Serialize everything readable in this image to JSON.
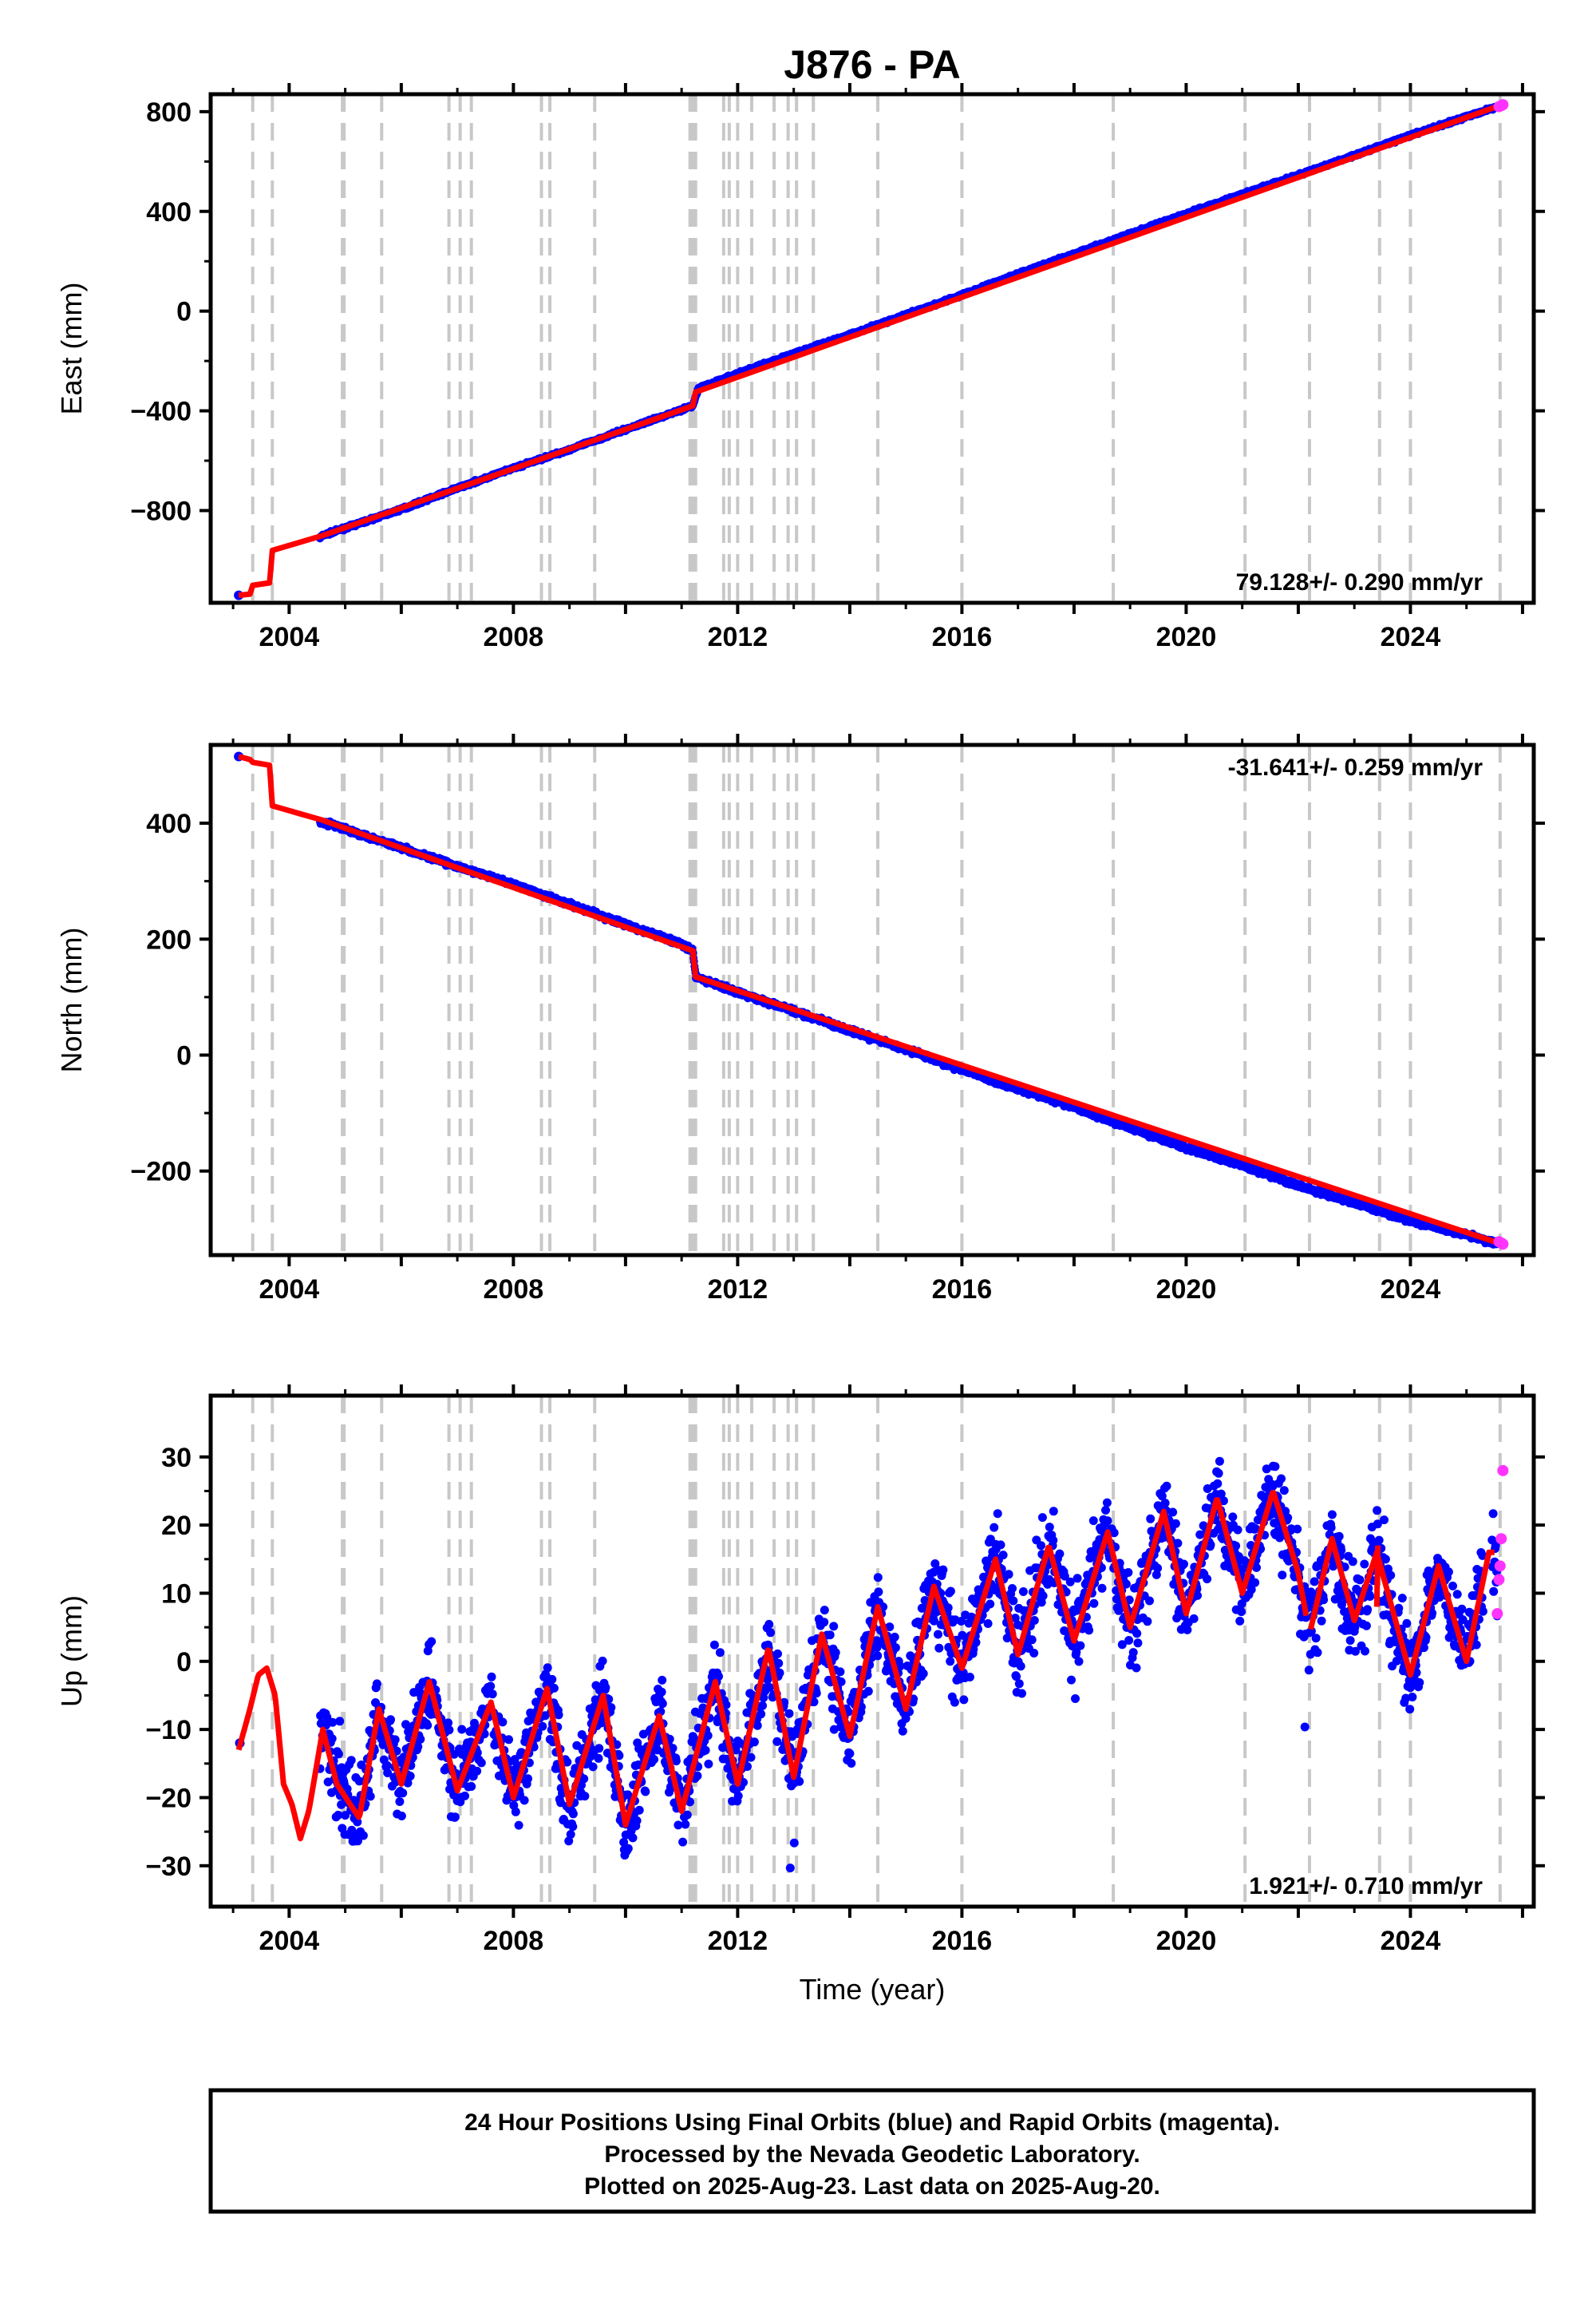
{
  "title": "J876 - PA",
  "footer": {
    "line1": "24 Hour Positions Using Final Orbits (blue) and Rapid Orbits (magenta).",
    "line2": "Processed by the Nevada Geodetic Laboratory.",
    "line3": "Plotted on 2025-Aug-23. Last data on 2025-Aug-20."
  },
  "colors": {
    "final": "#0000ff",
    "rapid": "#ff33ff",
    "model": "#ff0000",
    "events": "#c8c8c8"
  },
  "chart_data": [
    {
      "type": "scatter",
      "ylabel": "East (mm)",
      "xlabel": "",
      "rate_label": "79.128+/- 0.290 mm/yr",
      "xlim": [
        2002.6,
        2026.2
      ],
      "ylim": [
        -1170,
        870
      ],
      "yticks": [
        -800,
        -400,
        0,
        400,
        800
      ],
      "xticks": [
        2004,
        2008,
        2012,
        2016,
        2020,
        2024
      ],
      "series": [
        {
          "role": "final-orbits",
          "x": [
            2003.1,
            2003.3,
            2004.6,
            2005.0,
            2006.0,
            2007.0,
            2008.0,
            2009.0,
            2010.0,
            2011.0,
            2011.2,
            2011.3,
            2012.0,
            2013.0,
            2014.0,
            2015.0,
            2016.0,
            2017.0,
            2018.0,
            2019.0,
            2020.0,
            2021.0,
            2022.0,
            2023.0,
            2024.0,
            2025.0,
            2025.55
          ],
          "y": [
            -1140,
            -1135,
            -900,
            -870,
            -795,
            -710,
            -630,
            -555,
            -475,
            -395,
            -380,
            -310,
            -250,
            -170,
            -95,
            -15,
            65,
            150,
            230,
            310,
            390,
            470,
            545,
            625,
            705,
            780,
            820
          ]
        },
        {
          "role": "model",
          "x": [
            2003.1,
            2003.3,
            2003.35,
            2003.65,
            2003.7,
            2004.6,
            2011.2,
            2011.25,
            2025.6
          ],
          "y": [
            -1140,
            -1135,
            -1100,
            -1090,
            -960,
            -900,
            -380,
            -325,
            825
          ]
        },
        {
          "role": "rapid-orbits",
          "x": [
            2025.58,
            2025.62,
            2025.65
          ],
          "y": [
            820,
            824,
            828
          ]
        }
      ]
    },
    {
      "type": "scatter",
      "ylabel": "North (mm)",
      "xlabel": "",
      "rate_label": "-31.641+/- 0.259 mm/yr",
      "xlim": [
        2002.6,
        2026.2
      ],
      "ylim": [
        -345,
        535
      ],
      "yticks": [
        -200,
        0,
        200,
        400
      ],
      "xticks": [
        2004,
        2008,
        2012,
        2016,
        2020,
        2024
      ],
      "series": [
        {
          "role": "final-orbits",
          "x": [
            2003.1,
            2004.5,
            2005.0,
            2006.0,
            2007.0,
            2008.0,
            2009.0,
            2010.0,
            2011.0,
            2011.2,
            2011.25,
            2012.0,
            2013.0,
            2014.0,
            2015.0,
            2016.0,
            2017.0,
            2018.0,
            2019.0,
            2020.0,
            2021.0,
            2022.0,
            2023.0,
            2024.0,
            2025.0,
            2025.55
          ],
          "y": [
            515,
            405,
            390,
            358,
            325,
            295,
            260,
            225,
            192,
            180,
            135,
            108,
            76,
            42,
            10,
            -25,
            -58,
            -90,
            -125,
            -160,
            -190,
            -225,
            -255,
            -285,
            -310,
            -325
          ]
        },
        {
          "role": "model",
          "x": [
            2003.1,
            2003.3,
            2003.35,
            2003.65,
            2003.7,
            2004.6,
            2011.2,
            2011.25,
            2025.6
          ],
          "y": [
            515,
            510,
            505,
            500,
            430,
            405,
            180,
            135,
            -325
          ]
        },
        {
          "role": "rapid-orbits",
          "x": [
            2025.58,
            2025.62,
            2025.65
          ],
          "y": [
            -322,
            -324,
            -326
          ]
        }
      ]
    },
    {
      "type": "scatter",
      "ylabel": "Up (mm)",
      "xlabel": "Time (year)",
      "rate_label": "1.921+/- 0.710 mm/yr",
      "xlim": [
        2002.6,
        2026.2
      ],
      "ylim": [
        -36,
        39
      ],
      "yticks": [
        -30,
        -20,
        -10,
        0,
        10,
        20,
        30
      ],
      "xticks": [
        2004,
        2008,
        2012,
        2016,
        2020,
        2024
      ],
      "series": [
        {
          "role": "model",
          "x": [
            2003.1,
            2003.3,
            2003.45,
            2003.6,
            2003.75,
            2003.9,
            2004.05,
            2004.2,
            2004.35,
            2004.6,
            2004.85,
            2005.25,
            2005.6,
            2006.0,
            2006.5,
            2007.0,
            2007.6,
            2008.0,
            2008.6,
            2009.0,
            2009.6,
            2010.0,
            2010.6,
            2011.0,
            2011.6,
            2012.0,
            2012.55,
            2013.0,
            2013.5,
            2014.0,
            2014.5,
            2015.0,
            2015.5,
            2016.0,
            2016.6,
            2017.0,
            2017.55,
            2018.0,
            2018.6,
            2019.0,
            2019.6,
            2020.0,
            2020.55,
            2021.0,
            2021.55,
            2022.0,
            2022.2,
            2022.6,
            2023.0,
            2023.4,
            2023.8,
            2024.0,
            2024.5,
            2025.0,
            2025.4
          ],
          "y": [
            -13,
            -7,
            -2,
            -1,
            -5,
            -18,
            -21,
            -26,
            -22,
            -10,
            -18,
            -23,
            -7,
            -18,
            -3,
            -19,
            -6,
            -20,
            -4,
            -21,
            -5,
            -24,
            -8,
            -22,
            -3,
            -18,
            2,
            -17,
            4,
            -11,
            8,
            -7,
            11,
            -1,
            15,
            1,
            17,
            3,
            19,
            5,
            22,
            7,
            24,
            10,
            25,
            13,
            4,
            18,
            6,
            16,
            4,
            -2,
            14,
            0,
            16
          ]
        },
        {
          "role": "rapid-orbits",
          "x": [
            2025.55,
            2025.58,
            2025.6,
            2025.62,
            2025.65
          ],
          "y": [
            7,
            12,
            14,
            18,
            28
          ]
        }
      ]
    }
  ],
  "events": [
    2003.35,
    2003.7,
    2004.95,
    2004.98,
    2005.65,
    2006.85,
    2007.05,
    2007.25,
    2008.5,
    2008.65,
    2009.45,
    2011.15,
    2011.2,
    2011.25,
    2011.75,
    2011.85,
    2012.0,
    2012.25,
    2012.65,
    2012.9,
    2013.05,
    2013.35,
    2014.5,
    2016.0,
    2018.7,
    2021.05,
    2022.2,
    2023.45,
    2024.0,
    2025.6
  ]
}
